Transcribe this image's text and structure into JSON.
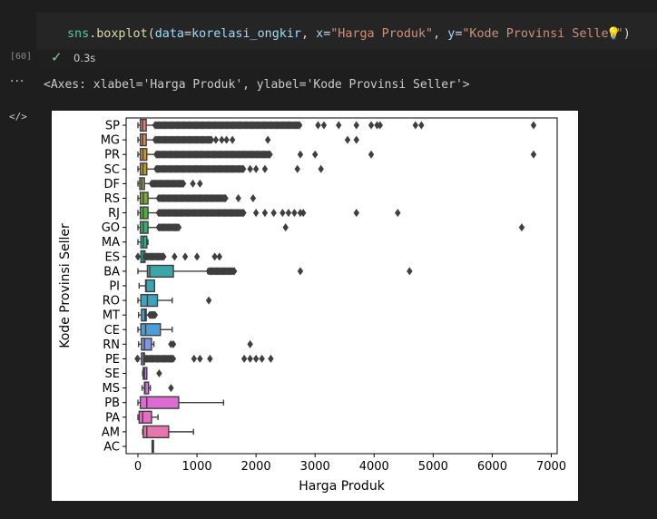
{
  "cell": {
    "code_tokens": [
      {
        "t": "sns",
        "c": "tk-var"
      },
      {
        "t": ".",
        "c": "tk-plain"
      },
      {
        "t": "boxplot",
        "c": "tk-fn"
      },
      {
        "t": "(",
        "c": "tk-plain"
      },
      {
        "t": "data",
        "c": "tk-param"
      },
      {
        "t": "=",
        "c": "tk-plain"
      },
      {
        "t": "korelasi_ongkir",
        "c": "tk-param"
      },
      {
        "t": ", ",
        "c": "tk-plain"
      },
      {
        "t": "x",
        "c": "tk-param"
      },
      {
        "t": "=",
        "c": "tk-plain"
      },
      {
        "t": "\"Harga Produk\"",
        "c": "tk-str"
      },
      {
        "t": ", ",
        "c": "tk-plain"
      },
      {
        "t": "y",
        "c": "tk-param"
      },
      {
        "t": "=",
        "c": "tk-plain"
      },
      {
        "t": "\"Kode Provinsi Seller\"",
        "c": "tk-str"
      },
      {
        "t": ")",
        "c": "tk-plain"
      }
    ],
    "execution_count": "[60]",
    "status_icon": "check-icon",
    "exec_time": "0.3s",
    "lightbulb_icon": "lightbulb-icon"
  },
  "output": {
    "more_icon": "···",
    "text": "<Axes: xlabel='Harga Produk', ylabel='Kode Provinsi Seller'>",
    "output_icon": "</>"
  },
  "chart_data": {
    "type": "boxplot",
    "xlabel": "Harga Produk",
    "ylabel": "Kode Provinsi Seller",
    "xlim": [
      -200,
      7100
    ],
    "xticks": [
      0,
      1000,
      2000,
      3000,
      4000,
      5000,
      6000,
      7000
    ],
    "categories": [
      "SP",
      "MG",
      "PR",
      "SC",
      "DF",
      "RS",
      "RJ",
      "GO",
      "MA",
      "ES",
      "BA",
      "PI",
      "RO",
      "MT",
      "CE",
      "RN",
      "PE",
      "SE",
      "MS",
      "PB",
      "PA",
      "AM",
      "AC"
    ],
    "colors": [
      "#e1817a",
      "#d78865",
      "#c59545",
      "#b49c3d",
      "#9ba43c",
      "#7aab3a",
      "#4fb13b",
      "#3bae6b",
      "#3ba989",
      "#3aa89b",
      "#3ba5a7",
      "#3ca4b2",
      "#3ea4bd",
      "#42a2c9",
      "#4b9fd8",
      "#7d96e5",
      "#a38ae7",
      "#c27de6",
      "#d270e0",
      "#de6bd3",
      "#e46fc2",
      "#e676ab",
      "#e67c93"
    ],
    "boxes": [
      {
        "cat": "SP",
        "q1": 40,
        "med": 80,
        "q3": 140,
        "wlo": 0,
        "whi": 290,
        "out_range": [
          290,
          2750
        ],
        "outliers": [
          3050,
          3150,
          3400,
          3700,
          3950,
          4050,
          4100,
          4700,
          4800,
          6700
        ]
      },
      {
        "cat": "MG",
        "q1": 40,
        "med": 80,
        "q3": 140,
        "wlo": 0,
        "whi": 290,
        "out_range": [
          290,
          1250
        ],
        "outliers": [
          1320,
          1420,
          1500,
          1600,
          2200,
          3550,
          3700
        ]
      },
      {
        "cat": "PR",
        "q1": 40,
        "med": 85,
        "q3": 150,
        "wlo": 0,
        "whi": 310,
        "out_range": [
          310,
          2250
        ],
        "outliers": [
          2750,
          3000,
          3950,
          6700
        ]
      },
      {
        "cat": "SC",
        "q1": 40,
        "med": 85,
        "q3": 150,
        "wlo": 0,
        "whi": 310,
        "out_range": [
          310,
          1800
        ],
        "outliers": [
          1900,
          2000,
          2150,
          2700,
          3100
        ]
      },
      {
        "cat": "DF",
        "q1": 30,
        "med": 65,
        "q3": 110,
        "wlo": 0,
        "whi": 230,
        "out_range": [
          230,
          780
        ],
        "outliers": [
          930,
          1050
        ]
      },
      {
        "cat": "RS",
        "q1": 40,
        "med": 90,
        "q3": 170,
        "wlo": 0,
        "whi": 350,
        "out_range": [
          350,
          1500
        ],
        "outliers": [
          1700,
          1950
        ]
      },
      {
        "cat": "RJ",
        "q1": 40,
        "med": 90,
        "q3": 170,
        "wlo": 0,
        "whi": 350,
        "out_range": [
          350,
          1800
        ],
        "outliers": [
          2000,
          2150,
          2300,
          2450,
          2550,
          2650,
          2750,
          2800,
          3700,
          4400
        ]
      },
      {
        "cat": "GO",
        "q1": 40,
        "med": 90,
        "q3": 170,
        "wlo": 0,
        "whi": 350,
        "out_range": [
          350,
          700
        ],
        "outliers": [
          2500,
          6500
        ]
      },
      {
        "cat": "MA",
        "q1": 50,
        "med": 90,
        "q3": 150,
        "wlo": 0,
        "whi": 170,
        "out_range": null,
        "outliers": []
      },
      {
        "cat": "ES",
        "q1": 50,
        "med": 90,
        "q3": 120,
        "wlo": 10,
        "whi": 130,
        "out_range": [
          130,
          450
        ],
        "outliers": [
          0,
          620,
          800,
          1000,
          1300,
          1380
        ]
      },
      {
        "cat": "BA",
        "q1": 160,
        "med": 200,
        "q3": 600,
        "wlo": 0,
        "whi": 1180,
        "out_range": [
          1200,
          1640
        ],
        "outliers": [
          2750,
          4600
        ]
      },
      {
        "cat": "PI",
        "q1": 130,
        "med": 140,
        "q3": 280,
        "wlo": 20,
        "whi": 280,
        "out_range": null,
        "outliers": []
      },
      {
        "cat": "RO",
        "q1": 50,
        "med": 160,
        "q3": 330,
        "wlo": 0,
        "whi": 580,
        "out_range": null,
        "outliers": [
          1200
        ]
      },
      {
        "cat": "MT",
        "q1": 60,
        "med": 120,
        "q3": 140,
        "wlo": 10,
        "whi": 200,
        "out_range": [
          200,
          300
        ],
        "outliers": []
      },
      {
        "cat": "CE",
        "q1": 50,
        "med": 130,
        "q3": 380,
        "wlo": 0,
        "whi": 580,
        "out_range": null,
        "outliers": []
      },
      {
        "cat": "RN",
        "q1": 60,
        "med": 110,
        "q3": 230,
        "wlo": 10,
        "whi": 270,
        "out_range": null,
        "outliers": [
          560,
          600,
          1900
        ]
      },
      {
        "cat": "PE",
        "q1": 60,
        "med": 95,
        "q3": 110,
        "wlo": 10,
        "whi": 130,
        "out_range": [
          130,
          600
        ],
        "outliers": [
          -10,
          950,
          1050,
          1220,
          1800,
          1900,
          2000,
          2100,
          2250
        ]
      },
      {
        "cat": "SE",
        "q1": 90,
        "med": 110,
        "q3": 150,
        "wlo": 80,
        "whi": 150,
        "out_range": null,
        "outliers": [
          360
        ]
      },
      {
        "cat": "MS",
        "q1": 110,
        "med": 120,
        "q3": 180,
        "wlo": 70,
        "whi": 210,
        "out_range": null,
        "outliers": [
          560
        ]
      },
      {
        "cat": "PB",
        "q1": 40,
        "med": 150,
        "q3": 690,
        "wlo": 0,
        "whi": 1450,
        "out_range": null,
        "outliers": []
      },
      {
        "cat": "PA",
        "q1": 20,
        "med": 80,
        "q3": 230,
        "wlo": 0,
        "whi": 340,
        "out_range": null,
        "outliers": []
      },
      {
        "cat": "AM",
        "q1": 90,
        "med": 150,
        "q3": 520,
        "wlo": 80,
        "whi": 940,
        "out_range": null,
        "outliers": []
      },
      {
        "cat": "AC",
        "q1": 240,
        "med": 250,
        "q3": 260,
        "wlo": 240,
        "whi": 260,
        "out_range": null,
        "outliers": []
      }
    ]
  }
}
